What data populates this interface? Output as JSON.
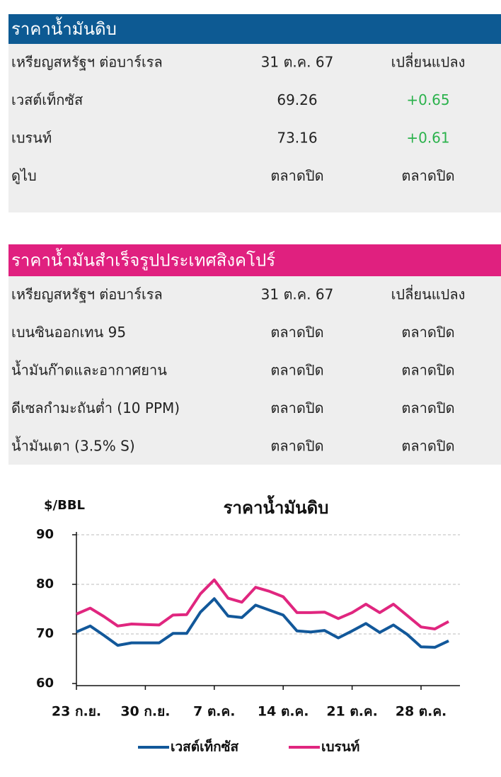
{
  "tables": [
    {
      "title": "ราคาน้ำมันดิบ",
      "header": [
        "เหรียญสหรัฐฯ ต่อบาร์เรล",
        "31 ต.ค. 67",
        "เปลี่ยนแปลง"
      ],
      "rows": [
        [
          "เวสต์เท็กซัส",
          "69.26",
          "+0.65"
        ],
        [
          "เบรนท์",
          "73.16",
          "+0.61"
        ],
        [
          "ดูไบ",
          "ตลาดปิด",
          "ตลาดปิด"
        ]
      ]
    },
    {
      "title": "ราคาน้ำมันสำเร็จรูปประเทศสิงคโปร์",
      "header": [
        "เหรียญสหรัฐฯ ต่อบาร์เรล",
        "31 ต.ค. 67",
        "เปลี่ยนแปลง"
      ],
      "rows": [
        [
          "เบนซินออกเทน 95",
          "ตลาดปิด",
          "ตลาดปิด"
        ],
        [
          "น้ำมันก๊าดและอากาศยาน",
          "ตลาดปิด",
          "ตลาดปิด"
        ],
        [
          "ดีเซลกำมะถันต่ำ (10 PPM)",
          "ตลาดปิด",
          "ตลาดปิด"
        ],
        [
          "น้ำมันเตา (3.5% S)",
          "ตลาดปิด",
          "ตลาดปิด"
        ]
      ]
    }
  ],
  "chart_data": {
    "type": "line",
    "title": "ราคาน้ำมันดิบ",
    "y_label": "$/BBL",
    "categories": [
      "23 ก.ย.",
      null,
      null,
      null,
      null,
      "30 ก.ย.",
      null,
      null,
      null,
      null,
      "7 ต.ค.",
      null,
      null,
      null,
      null,
      "14 ต.ค.",
      null,
      null,
      null,
      null,
      "21 ต.ค.",
      null,
      null,
      null,
      null,
      "28 ต.ค.",
      null,
      null
    ],
    "series": [
      {
        "name": "เวสต์เท็กซัส",
        "color": "#12589a",
        "values": [
          70.4,
          71.6,
          69.7,
          67.7,
          68.2,
          68.2,
          68.2,
          70.1,
          70.1,
          74.4,
          77.1,
          73.6,
          73.3,
          75.8,
          74.8,
          73.8,
          70.6,
          70.4,
          70.7,
          69.2,
          70.6,
          72.1,
          70.3,
          71.8,
          69.9,
          67.4,
          67.3,
          68.6
        ]
      },
      {
        "name": "เบรนท์",
        "color": "#e0267f",
        "values": [
          74.0,
          75.2,
          73.5,
          71.6,
          72.0,
          71.9,
          71.8,
          73.8,
          73.9,
          78.1,
          80.9,
          77.2,
          76.4,
          79.4,
          78.6,
          77.5,
          74.3,
          74.3,
          74.4,
          73.1,
          74.3,
          76.0,
          74.3,
          76.0,
          73.7,
          71.4,
          71.0,
          72.5
        ]
      }
    ],
    "ylim": [
      60,
      90
    ],
    "yticks": [
      60,
      70,
      80,
      90
    ],
    "grid": true
  }
}
